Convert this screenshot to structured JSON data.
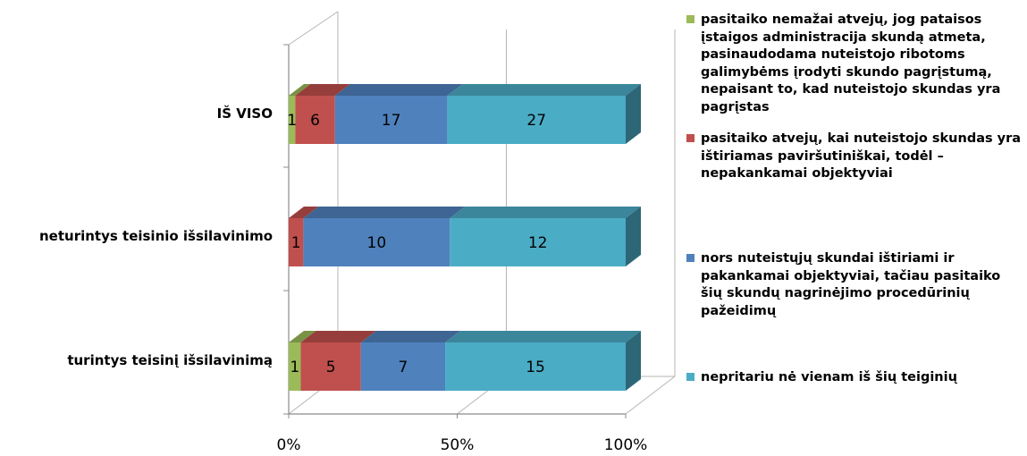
{
  "chart_data": {
    "type": "bar",
    "orientation": "horizontal",
    "stacked": "100%",
    "style": "3d",
    "categories": [
      "IŠ VISO",
      "neturintys teisinio išsilavinimo",
      "turintys teisinį išsilavinimą"
    ],
    "series": [
      {
        "name": "pasitaiko nemažai atvejų, jog pataisos\nįstaigos administracija skundą atmeta,\npasinaudodama nuteistojo ribotoms\ngalimybėms įrodyti skundo pagrįstumą,\nnepaisant to, kad nuteistojo skundas yra\npagrįstas",
        "color": "#9BBB59",
        "values": [
          1,
          0,
          1
        ]
      },
      {
        "name": "pasitaiko atvejų, kai nuteistojo skundas yra\ništiriamas paviršutiniškai, todėl –\nnepakankamai objektyviai",
        "color": "#C0504D",
        "values": [
          6,
          1,
          5
        ]
      },
      {
        "name": "nors nuteistųjų skundai ištiriami ir\npakankamai objektyviai, tačiau pasitaiko\nšių skundų nagrinėjimo procedūrinių\npažeidimų",
        "color": "#4F81BD",
        "values": [
          17,
          10,
          7
        ]
      },
      {
        "name": "nepritariu nė vienam iš šių teiginių",
        "color": "#4BACC6",
        "values": [
          27,
          12,
          15
        ]
      }
    ],
    "x_tick_labels": [
      "0%",
      "50%",
      "100%"
    ],
    "xlim": [
      0,
      100
    ],
    "legend_position": "right",
    "grid": true
  }
}
